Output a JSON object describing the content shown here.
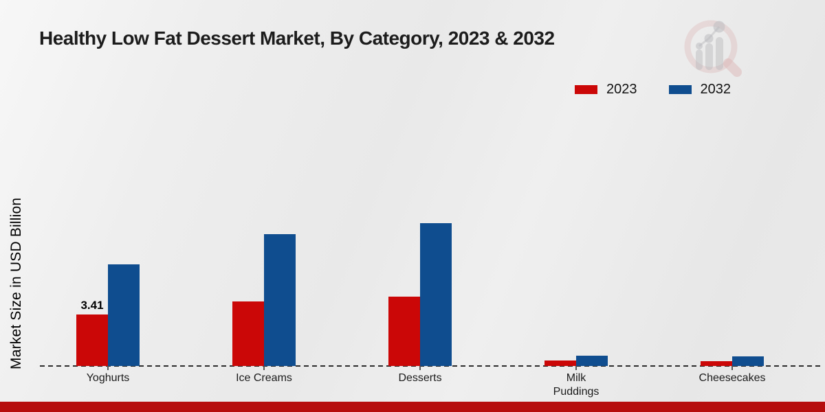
{
  "header": {
    "title": "Healthy Low Fat Dessert Market, By Category, 2023 & 2032"
  },
  "y_axis_label": "Market Size in USD Billion",
  "legend": {
    "items": [
      "2023",
      "2032"
    ]
  },
  "chart_data": {
    "type": "bar",
    "title": "Healthy Low Fat Dessert Market, By Category, 2023 & 2032",
    "xlabel": "",
    "ylabel": "Market Size in USD Billion",
    "categories": [
      "Yoghurts",
      "Ice Creams",
      "Desserts",
      "Milk Puddings",
      "Cheesecakes"
    ],
    "categories_display": [
      "Yoghurts",
      "Ice Creams",
      "Desserts",
      "Milk\nPuddings",
      "Cheesecakes"
    ],
    "series": [
      {
        "name": "2023",
        "color": "#cb0707",
        "values": [
          3.41,
          4.27,
          4.6,
          0.36,
          0.32
        ]
      },
      {
        "name": "2032",
        "color": "#0f4d8f",
        "values": [
          6.73,
          8.73,
          9.45,
          0.68,
          0.64
        ]
      }
    ],
    "data_labels": [
      {
        "category": "Yoghurts",
        "series": "2023",
        "text": "3.41"
      }
    ],
    "ylim": [
      0,
      10.5
    ],
    "grid": false,
    "legend_position": "top-right",
    "baseline_style": "dashed",
    "y_axis_ticks_visible": false
  },
  "colors": {
    "series_2023": "#cb0707",
    "series_2032": "#0f4d8f",
    "footer_bar": "#b60d0d",
    "background": "#ebebeb",
    "logo_ring_pink": "#dcaaaa",
    "logo_gray": "#b4b4b8"
  },
  "footer": {}
}
